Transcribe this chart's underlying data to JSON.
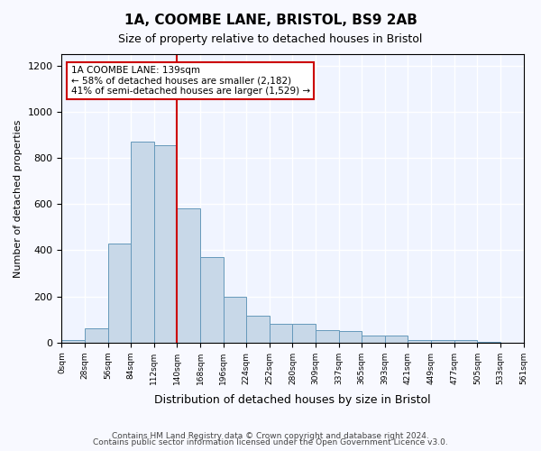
{
  "title": "1A, COOMBE LANE, BRISTOL, BS9 2AB",
  "subtitle": "Size of property relative to detached houses in Bristol",
  "xlabel": "Distribution of detached houses by size in Bristol",
  "ylabel": "Number of detached properties",
  "bar_color": "#c8d8e8",
  "bar_edge_color": "#6699bb",
  "background_color": "#f0f4ff",
  "grid_color": "#ffffff",
  "annotation_box_color": "#cc0000",
  "property_line_color": "#cc0000",
  "property_size": 139,
  "property_label": "1A COOMBE LANE: 139sqm",
  "smaller_pct": "58%",
  "smaller_n": "2,182",
  "larger_pct": "41%",
  "larger_n": "1,529",
  "bin_edges": [
    0,
    28,
    56,
    84,
    112,
    140,
    168,
    196,
    224,
    252,
    280,
    308,
    336,
    364,
    392,
    420,
    448,
    476,
    504,
    532,
    560
  ],
  "bin_labels": [
    "0sqm",
    "28sqm",
    "56sqm",
    "84sqm",
    "112sqm",
    "140sqm",
    "168sqm",
    "196sqm",
    "224sqm",
    "252sqm",
    "280sqm",
    "309sqm",
    "337sqm",
    "365sqm",
    "393sqm",
    "421sqm",
    "449sqm",
    "477sqm",
    "505sqm",
    "533sqm",
    "561sqm"
  ],
  "counts": [
    10,
    60,
    430,
    870,
    855,
    580,
    370,
    200,
    115,
    80,
    80,
    55,
    50,
    30,
    30,
    10,
    10,
    10,
    5,
    0,
    5
  ],
  "ylim": [
    0,
    1250
  ],
  "yticks": [
    0,
    200,
    400,
    600,
    800,
    1000,
    1200
  ],
  "footer1": "Contains HM Land Registry data © Crown copyright and database right 2024.",
  "footer2": "Contains public sector information licensed under the Open Government Licence v3.0."
}
